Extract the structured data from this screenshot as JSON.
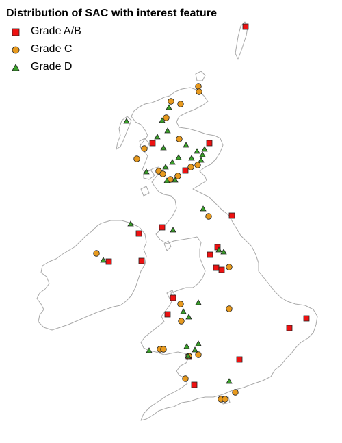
{
  "title": "Distribution of SAC with interest feature",
  "legend": [
    {
      "label": "Grade A/B",
      "symbol": "square-icon",
      "color": "#ee1111"
    },
    {
      "label": "Grade C",
      "symbol": "circle-icon",
      "color": "#e89a1e"
    },
    {
      "label": "Grade D",
      "symbol": "triangle-icon",
      "color": "#3aa12a"
    }
  ],
  "coastline_color": "#a8a8a8"
}
